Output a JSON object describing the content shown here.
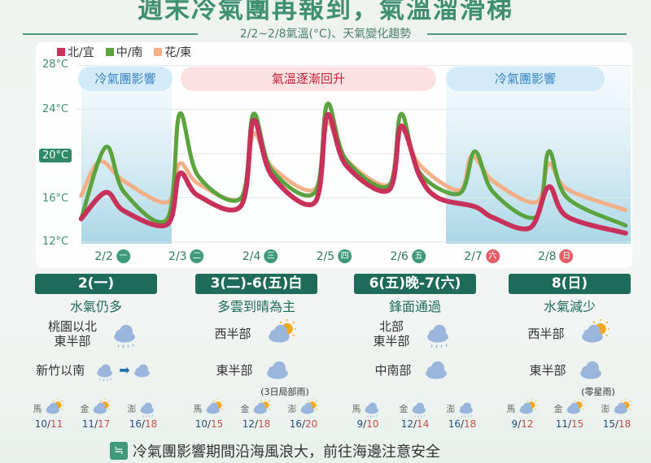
{
  "title": "週末冷氣團再報到，氣溫溜滑梯",
  "subtitle": "2/2~2/8氣溫(°C)、天氣變化趨勢",
  "legend": [
    {
      "label": "北/宜",
      "color": "#c8325a"
    },
    {
      "label": "中/南",
      "color": "#5aa33e"
    },
    {
      "label": "花/東",
      "color": "#f2b089"
    }
  ],
  "bands": [
    {
      "label": "冷氣團影響",
      "type": "cold"
    },
    {
      "label": "氣溫逐漸回升",
      "type": "warm"
    },
    {
      "label": "冷氣團影響",
      "type": "cold"
    }
  ],
  "chart_data": {
    "type": "line",
    "ylim": [
      12,
      28
    ],
    "yticks": [
      "28°C",
      "24°C",
      "20°C",
      "16°C",
      "12°C"
    ],
    "highlight_tick": "20°C",
    "grid": true,
    "legend_position": "top-left",
    "categories": [
      {
        "date": "2/2",
        "weekday": "一"
      },
      {
        "date": "2/3",
        "weekday": "二"
      },
      {
        "date": "2/4",
        "weekday": "三"
      },
      {
        "date": "2/5",
        "weekday": "四"
      },
      {
        "date": "2/6",
        "weekday": "五"
      },
      {
        "date": "2/7",
        "weekday": "六",
        "weekend": true
      },
      {
        "date": "2/8",
        "weekday": "日",
        "weekend": true
      }
    ],
    "series": [
      {
        "name": "北/宜",
        "color": "#c8325a",
        "points": [
          [
            "2/2 06",
            14.1
          ],
          [
            "2/2 14",
            16.5
          ],
          [
            "2/2 20",
            14.8
          ],
          [
            "2/3 10",
            13.6
          ],
          [
            "2/3 14",
            18.2
          ],
          [
            "2/3 20",
            16.2
          ],
          [
            "2/4 10",
            15.3
          ],
          [
            "2/4 14",
            23
          ],
          [
            "2/4 20",
            18
          ],
          [
            "2/5 10",
            15.6
          ],
          [
            "2/5 14",
            23.5
          ],
          [
            "2/5 20",
            19
          ],
          [
            "2/6 10",
            16.7
          ],
          [
            "2/6 14",
            22.5
          ],
          [
            "2/6 20",
            18
          ],
          [
            "2/7 02",
            16
          ],
          [
            "2/7 14",
            15.2
          ],
          [
            "2/7 20",
            14.2
          ],
          [
            "2/8 08",
            13.3
          ],
          [
            "2/8 14",
            17
          ],
          [
            "2/8 20",
            14.3
          ],
          [
            "2/9 15",
            12.8
          ]
        ]
      },
      {
        "name": "中/南",
        "color": "#5aa33e",
        "points": [
          [
            "2/2 06",
            14.1
          ],
          [
            "2/2 14",
            20.6
          ],
          [
            "2/2 20",
            16.5
          ],
          [
            "2/3 10",
            14.1
          ],
          [
            "2/3 14",
            23.6
          ],
          [
            "2/3 20",
            18
          ],
          [
            "2/4 10",
            16
          ],
          [
            "2/4 14",
            23.6
          ],
          [
            "2/4 20",
            18.5
          ],
          [
            "2/5 10",
            16.5
          ],
          [
            "2/5 14",
            24.5
          ],
          [
            "2/5 20",
            19.5
          ],
          [
            "2/6 10",
            17.1
          ],
          [
            "2/6 14",
            23.6
          ],
          [
            "2/6 20",
            18.3
          ],
          [
            "2/7 09",
            16.4
          ],
          [
            "2/7 14",
            20.2
          ],
          [
            "2/7 20",
            16.5
          ],
          [
            "2/8 10",
            14.3
          ],
          [
            "2/8 14",
            20.2
          ],
          [
            "2/8 20",
            16
          ],
          [
            "2/9 15",
            13.5
          ]
        ]
      },
      {
        "name": "花/東",
        "color": "#f2b089",
        "points": [
          [
            "2/2 06",
            16.2
          ],
          [
            "2/2 12",
            19.3
          ],
          [
            "2/2 20",
            17.5
          ],
          [
            "2/3 10",
            15.6
          ],
          [
            "2/3 14",
            19.1
          ],
          [
            "2/3 20",
            17.3
          ],
          [
            "2/4 10",
            16
          ],
          [
            "2/4 14",
            21.8
          ],
          [
            "2/4 20",
            18.8
          ],
          [
            "2/5 10",
            16.8
          ],
          [
            "2/5 14",
            22.8
          ],
          [
            "2/5 20",
            19.5
          ],
          [
            "2/6 10",
            17.2
          ],
          [
            "2/6 14",
            22.2
          ],
          [
            "2/6 20",
            19
          ],
          [
            "2/7 09",
            16.7
          ],
          [
            "2/7 13",
            19.8
          ],
          [
            "2/7 20",
            17.5
          ],
          [
            "2/8 10",
            15.6
          ],
          [
            "2/8 14",
            19.1
          ],
          [
            "2/8 20",
            16.8
          ],
          [
            "2/9 15",
            14.9
          ]
        ]
      }
    ]
  },
  "panels": [
    {
      "header": "2(一)",
      "summary": "水氣仍多",
      "r1": "桃園以北\n東半部",
      "r1icon": "rain-cloud",
      "r2": "新竹以南",
      "r2icon": "rain-to-cloud",
      "r2note": "",
      "islands": [
        {
          "name": "馬",
          "icon": "sun-cloud",
          "lo": "10",
          "hi": "11"
        },
        {
          "name": "金",
          "icon": "sun-cloud",
          "lo": "11",
          "hi": "17"
        },
        {
          "name": "澎",
          "icon": "rain-cloud",
          "lo": "16",
          "hi": "18"
        }
      ]
    },
    {
      "header": "3(二)-6(五)白",
      "summary": "多雲到晴為主",
      "r1": "西半部",
      "r1icon": "sun-cloud",
      "r2": "東半部",
      "r2icon": "cloud",
      "r2note": "(3日局部雨)",
      "islands": [
        {
          "name": "馬",
          "icon": "sun-cloud",
          "lo": "10",
          "hi": "15"
        },
        {
          "name": "金",
          "icon": "sun-cloud",
          "lo": "12",
          "hi": "18"
        },
        {
          "name": "澎",
          "icon": "sun-cloud",
          "lo": "16",
          "hi": "20"
        }
      ]
    },
    {
      "header": "6(五)晚-7(六)",
      "summary": "鋒面通過",
      "r1": "北部\n東半部",
      "r1icon": "rain-cloud",
      "r2": "中南部",
      "r2icon": "cloud",
      "r2note": "",
      "islands": [
        {
          "name": "馬",
          "icon": "rain-cloud",
          "lo": "9",
          "hi": "10"
        },
        {
          "name": "金",
          "icon": "rain-cloud",
          "lo": "12",
          "hi": "14"
        },
        {
          "name": "澎",
          "icon": "rain-cloud",
          "lo": "16",
          "hi": "18"
        }
      ]
    },
    {
      "header": "8(日)",
      "summary": "水氣減少",
      "r1": "西半部",
      "r1icon": "sun-cloud",
      "r2": "東半部",
      "r2icon": "cloud",
      "r2note": "(零星雨)",
      "islands": [
        {
          "name": "馬",
          "icon": "sun-cloud",
          "lo": "9",
          "hi": "12"
        },
        {
          "name": "金",
          "icon": "sun-cloud",
          "lo": "11",
          "hi": "15"
        },
        {
          "name": "澎",
          "icon": "sun-cloud",
          "lo": "15",
          "hi": "18"
        }
      ]
    }
  ],
  "footer": "冷氣團影響期間沿海風浪大，前往海邊注意安全",
  "colors": {
    "header": "#1f6b5a",
    "accent": "#3f8f73",
    "weekday": "#3e9a7a",
    "weekend": "#e0606a"
  }
}
